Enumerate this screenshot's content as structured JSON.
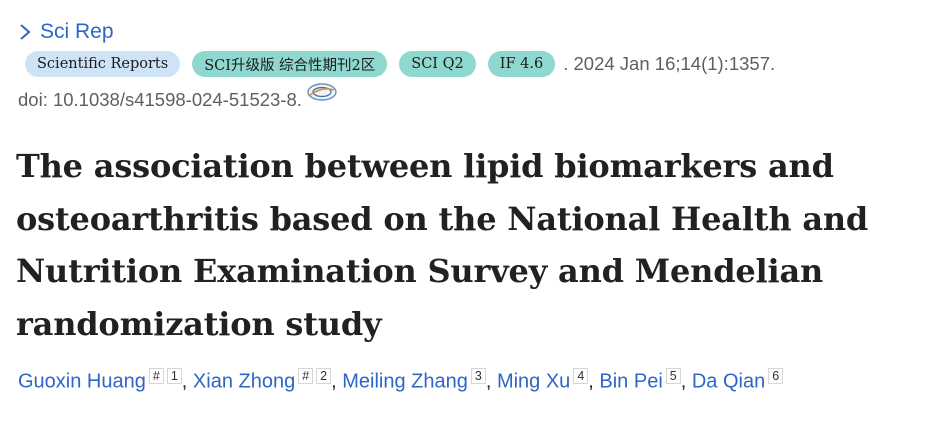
{
  "journal": {
    "short_name": "Sci Rep"
  },
  "badges": [
    {
      "label": "Scientific Reports",
      "style": "blue"
    },
    {
      "label": "SCI升级版 综合性期刊2区",
      "style": "teal"
    },
    {
      "label": "SCI Q2",
      "style": "teal"
    },
    {
      "label": "IF 4.6",
      "style": "teal"
    }
  ],
  "citation": ". 2024 Jan 16;14(1):1357.",
  "doi": "doi: 10.1038/s41598-024-51523-8.",
  "title_lines": [
    "The association between lipid biomarkers and",
    "osteoarthritis based on the National Health and",
    "Nutrition Examination Survey and Mendelian",
    "randomization study"
  ],
  "authors": [
    {
      "name": "Guoxin Huang",
      "marks": [
        "#",
        "1"
      ]
    },
    {
      "name": "Xian Zhong",
      "marks": [
        "#",
        "2"
      ]
    },
    {
      "name": "Meiling Zhang",
      "marks": [
        "3"
      ]
    },
    {
      "name": "Ming Xu",
      "marks": [
        "4"
      ]
    },
    {
      "name": "Bin Pei",
      "marks": [
        "5"
      ]
    },
    {
      "name": "Da Qian",
      "marks": [
        "6"
      ]
    }
  ],
  "colors": {
    "link": "#2e66c7",
    "badge_blue": "#cfe3f7",
    "badge_teal": "#8fd8cf",
    "meta_text": "#5f5f5f"
  },
  "icons": {
    "journal_chevron": "chevron-right-icon",
    "doi_icon": "full-text-link-icon"
  }
}
